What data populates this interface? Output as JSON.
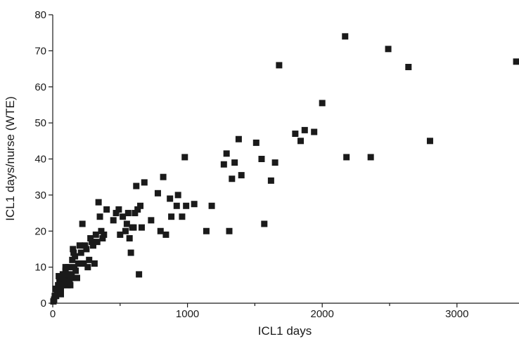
{
  "chart_data": {
    "type": "scatter",
    "title": "",
    "xlabel": "ICL1 days",
    "ylabel": "ICL1 days/nurse (WTE)",
    "xlim": [
      0,
      3450
    ],
    "ylim": [
      0,
      80
    ],
    "x_ticks": [
      0,
      1000,
      2000,
      3000
    ],
    "x_minor_ticks": [
      500,
      1500,
      2500
    ],
    "y_ticks": [
      0,
      10,
      20,
      30,
      40,
      50,
      60,
      70,
      80
    ],
    "grid": false,
    "marker": "square",
    "marker_color": "#1a1a1a",
    "series": [
      {
        "x": [
          5,
          10,
          15,
          20,
          25,
          30,
          35,
          40,
          45,
          50,
          55,
          60,
          60,
          65,
          70,
          70,
          75,
          80,
          80,
          85,
          90,
          95,
          95,
          100,
          105,
          110,
          110,
          115,
          120,
          125,
          130,
          135,
          140,
          145,
          150,
          155,
          160,
          165,
          170,
          180,
          190,
          200,
          210,
          220,
          230,
          240,
          250,
          260,
          270,
          280,
          290,
          300,
          310,
          320,
          330,
          340,
          350,
          360,
          370,
          380,
          400,
          450,
          470,
          490,
          500,
          520,
          540,
          550,
          560,
          570,
          580,
          590,
          600,
          610,
          620,
          630,
          640,
          650,
          660,
          680,
          730,
          780,
          800,
          820,
          840,
          870,
          880,
          920,
          930,
          960,
          980,
          990,
          1050,
          1140,
          1180,
          1270,
          1290,
          1310,
          1330,
          1350,
          1380,
          1400,
          1510,
          1550,
          1570,
          1620,
          1650,
          1680,
          1800,
          1840,
          1870,
          1940,
          2000,
          2170,
          2180,
          2360,
          2490,
          2640,
          2800,
          3440
        ],
        "y": [
          0.5,
          1,
          2,
          4,
          2,
          3,
          4,
          5,
          7.5,
          6,
          3,
          2.5,
          4,
          5,
          7,
          6,
          8,
          5,
          7,
          8,
          6,
          9,
          10,
          7,
          8,
          6,
          5,
          10,
          8,
          6,
          5,
          7,
          8,
          12,
          15,
          14,
          10,
          13,
          9,
          7,
          11,
          16,
          14,
          22,
          11,
          16,
          15,
          10,
          12,
          18,
          17,
          16,
          11,
          19,
          17,
          28,
          24,
          20,
          18,
          19,
          26,
          23,
          25,
          26,
          19,
          24,
          20,
          22,
          25,
          18,
          14,
          21,
          21,
          25,
          32.5,
          26,
          8,
          27,
          21,
          33.5,
          23,
          30.5,
          20,
          35,
          19,
          29,
          24,
          27,
          30,
          24,
          40.5,
          27,
          27.5,
          20,
          27,
          38.5,
          41.5,
          20,
          34.5,
          39,
          45.5,
          35.5,
          44.5,
          40,
          22,
          34,
          39,
          66,
          47,
          45,
          48,
          47.5,
          55.5,
          74,
          40.5,
          40.5,
          70.5,
          65.5,
          45,
          67
        ]
      }
    ]
  }
}
